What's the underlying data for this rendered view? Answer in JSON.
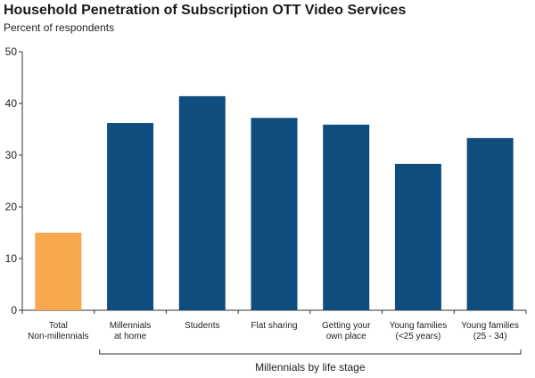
{
  "chart_data": {
    "type": "bar",
    "title": "Household Penetration of Subscription OTT Video Services",
    "subtitle": "Percent of respondents",
    "categories": [
      [
        "Total",
        "Non-millennials"
      ],
      [
        "Millennials",
        "at home"
      ],
      [
        "Students"
      ],
      [
        "Flat sharing"
      ],
      [
        "Getting your",
        "own place"
      ],
      [
        "Young families",
        "(<25 years)"
      ],
      [
        "Young families",
        "(25 - 34)"
      ]
    ],
    "values": [
      15,
      36.2,
      41.4,
      37.2,
      35.9,
      28.3,
      33.3
    ],
    "bar_colors": [
      "#f7a84c",
      "#0f4d7e",
      "#0f4d7e",
      "#0f4d7e",
      "#0f4d7e",
      "#0f4d7e",
      "#0f4d7e"
    ],
    "ylim": [
      0,
      50
    ],
    "yticks": [
      0,
      10,
      20,
      30,
      40,
      50
    ],
    "group_label": "Millennials by life stage",
    "group_span": [
      1,
      6
    ],
    "grid": false
  }
}
